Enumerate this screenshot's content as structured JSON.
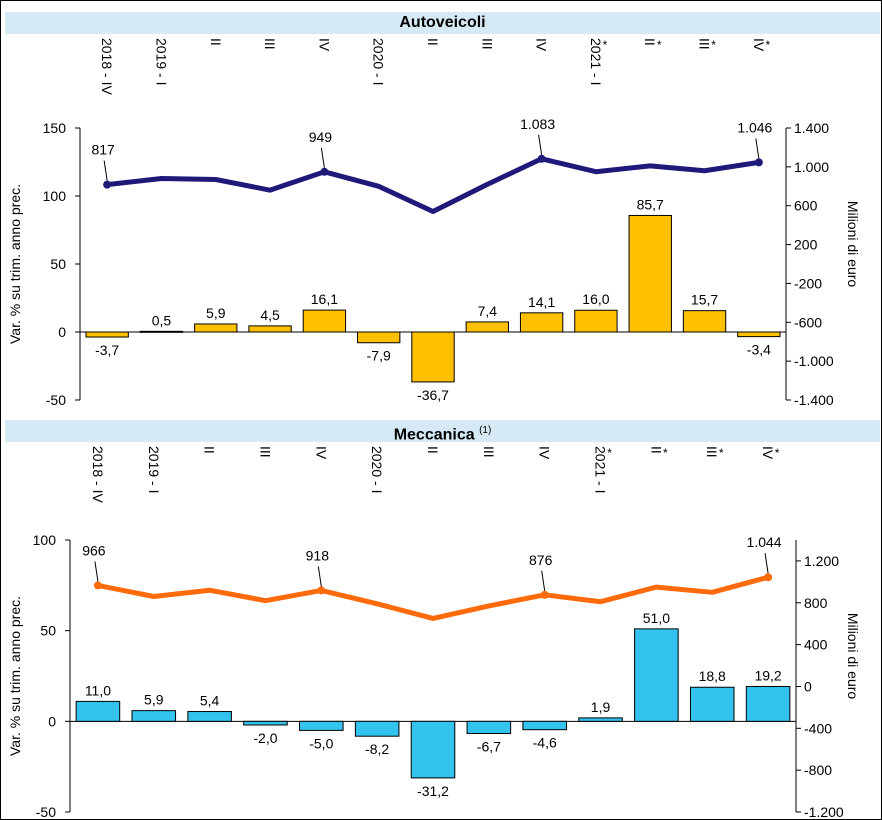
{
  "panels": [
    {
      "title": "Autoveicoli",
      "title_note": "",
      "bar_color": "#ffc000",
      "line_color": "#1f1a7a",
      "left_ticks": [
        "150",
        "100",
        "50",
        "0",
        "-50"
      ],
      "right_ticks": [
        "1.400",
        "1.000",
        "600",
        "200",
        "-200",
        "-600",
        "-1.000",
        "-1.400"
      ],
      "ylabel_left": "Var. % su trim. anno prec.",
      "ylabel_right": "Milioni di euro"
    },
    {
      "title": "Meccanica",
      "title_note": "(1)",
      "bar_color": "#33c3ee",
      "line_color": "#ff6a0a",
      "left_ticks": [
        "100",
        "50",
        "0",
        "-50"
      ],
      "right_ticks": [
        "1.200",
        "800",
        "400",
        "0",
        "-400",
        "-800",
        "-1.200"
      ],
      "ylabel_left": "Var. % su trim. anno prec.",
      "ylabel_right": "Milioni di euro"
    }
  ],
  "chart_data": [
    {
      "type": "bar",
      "title": "Autoveicoli",
      "categories": [
        "2018 - IV",
        "2019 - I",
        "II",
        "III",
        "IV",
        "2020 - I",
        "II",
        "III",
        "IV",
        "2021 - I",
        "II",
        "III",
        "IV"
      ],
      "category_marks": [
        "",
        "",
        "",
        "",
        "",
        "",
        "",
        "",
        "",
        "*",
        "*",
        "*",
        "*"
      ],
      "series": [
        {
          "type": "bar",
          "axis": "left",
          "values": [
            -3.7,
            0.5,
            5.9,
            4.5,
            16.1,
            -7.9,
            -36.7,
            7.4,
            14.1,
            16.0,
            85.7,
            15.7,
            -3.4
          ],
          "labels": [
            "-3,7",
            "0,5",
            "5,9",
            "4,5",
            "16,1",
            "-7,9",
            "-36,7",
            "7,4",
            "14,1",
            "16,0",
            "85,7",
            "15,7",
            "-3,4"
          ]
        },
        {
          "type": "line",
          "axis": "right",
          "values": [
            817,
            880,
            870,
            760,
            949,
            800,
            540,
            820,
            1083,
            950,
            1010,
            960,
            1046
          ],
          "labels": [
            "817",
            "",
            "",
            "",
            "949",
            "",
            "",
            "",
            "1.083",
            "",
            "",
            "",
            "1.046"
          ]
        }
      ],
      "ylabel": "Var. % su trim. anno prec.",
      "y2label": "Milioni di euro",
      "ylim": [
        -50,
        150
      ],
      "y2lim": [
        -1400,
        1400
      ]
    },
    {
      "type": "bar",
      "title": "Meccanica",
      "categories": [
        "2018 - IV",
        "2019 - I",
        "II",
        "III",
        "IV",
        "2020 - I",
        "II",
        "III",
        "IV",
        "2021 - I",
        "II",
        "III",
        "IV"
      ],
      "category_marks": [
        "",
        "",
        "",
        "",
        "",
        "",
        "",
        "",
        "",
        "*",
        "*",
        "*",
        "*"
      ],
      "series": [
        {
          "type": "bar",
          "axis": "left",
          "values": [
            11.0,
            5.9,
            5.4,
            -2.0,
            -5.0,
            -8.2,
            -31.2,
            -6.7,
            -4.6,
            1.9,
            51.0,
            18.8,
            19.2
          ],
          "labels": [
            "11,0",
            "5,9",
            "5,4",
            "-2,0",
            "-5,0",
            "-8,2",
            "-31,2",
            "-6,7",
            "-4,6",
            "1,9",
            "51,0",
            "18,8",
            "19,2"
          ]
        },
        {
          "type": "line",
          "axis": "right",
          "values": [
            966,
            860,
            920,
            820,
            918,
            790,
            650,
            770,
            876,
            810,
            950,
            900,
            1044
          ],
          "labels": [
            "966",
            "",
            "",
            "",
            "918",
            "",
            "",
            "",
            "876",
            "",
            "",
            "",
            "1.044"
          ]
        }
      ],
      "ylabel": "Var. % su trim. anno prec.",
      "y2label": "Milioni di euro",
      "ylim": [
        -50,
        100
      ],
      "y2lim": [
        -1200,
        1400
      ]
    }
  ]
}
